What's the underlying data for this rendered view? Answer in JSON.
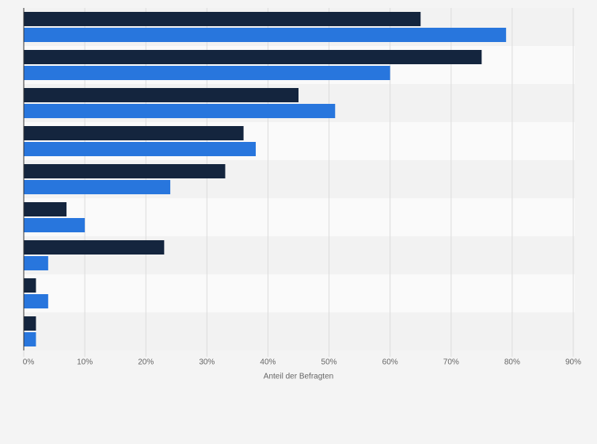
{
  "chart_data": {
    "type": "bar",
    "orientation": "horizontal",
    "xlabel": "Anteil der Befragten",
    "categories": [
      null,
      null,
      null,
      null,
      null,
      null,
      null,
      null,
      null
    ],
    "series": [
      {
        "color": "#14253e",
        "values": [
          65,
          75,
          45,
          36,
          33,
          7,
          23,
          2,
          2
        ]
      },
      {
        "color": "#2876dd",
        "values": [
          79,
          60,
          51,
          38,
          24,
          10,
          4,
          4,
          2
        ]
      }
    ],
    "xlim": [
      0,
      90
    ],
    "xticks": [
      {
        "value": 0,
        "label": "0%"
      },
      {
        "value": 10,
        "label": "10%"
      },
      {
        "value": 20,
        "label": "20%"
      },
      {
        "value": 30,
        "label": "30%"
      },
      {
        "value": 40,
        "label": "40%"
      },
      {
        "value": 50,
        "label": "50%"
      },
      {
        "value": 60,
        "label": "60%"
      },
      {
        "value": 70,
        "label": "70%"
      },
      {
        "value": 80,
        "label": "80%"
      },
      {
        "value": 90,
        "label": "90%"
      }
    ],
    "grid": true
  }
}
